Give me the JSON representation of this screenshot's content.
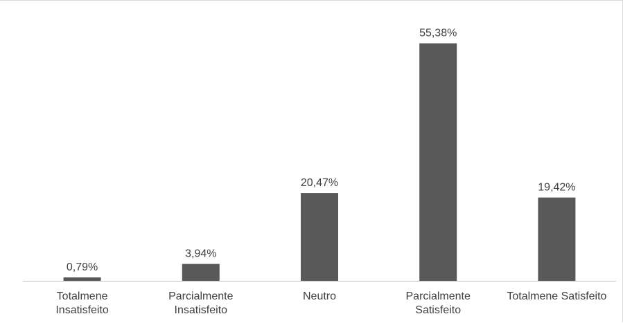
{
  "chart_data": {
    "type": "bar",
    "categories": [
      [
        "Totalmene",
        "Insatisfeito"
      ],
      [
        "Parcialmente",
        "Insatisfeito"
      ],
      [
        "Neutro"
      ],
      [
        "Parcialmente",
        "Satisfeito"
      ],
      [
        "Totalmene Satisfeito"
      ]
    ],
    "values": [
      0.79,
      3.94,
      20.47,
      55.38,
      19.42
    ],
    "data_labels": [
      "0,79%",
      "3,94%",
      "20,47%",
      "55,38%",
      "19,42%"
    ],
    "title": "",
    "xlabel": "",
    "ylabel": "",
    "ylim": [
      0,
      60
    ],
    "grid": false,
    "legend": "none",
    "colors": {
      "bar": "#595959",
      "axis": "#bfbfbf",
      "text": "#404040",
      "border": "#d9d9d9"
    }
  }
}
